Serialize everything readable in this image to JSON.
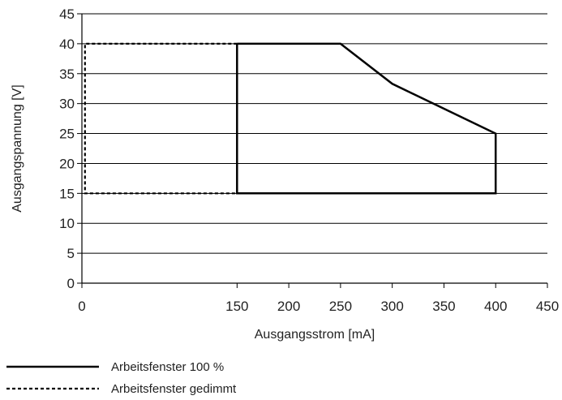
{
  "chart_data": {
    "type": "line",
    "xlabel": "Ausgangsstrom [mA]",
    "ylabel": "Ausgangspannung [V]",
    "xlim": [
      0,
      450
    ],
    "ylim": [
      0,
      45
    ],
    "xticks": [
      "0",
      "150",
      "200",
      "250",
      "300",
      "350",
      "400",
      "450"
    ],
    "yticks": [
      "0",
      "5",
      "10",
      "15",
      "20",
      "25",
      "30",
      "35",
      "40",
      "45"
    ],
    "grid": "horizontal",
    "legend_position": "bottom-left",
    "series": [
      {
        "name": "Arbeitsfenster 100 %",
        "style": "solid",
        "color": "#000000",
        "x": [
          150,
          250,
          300,
          400,
          400,
          150,
          150
        ],
        "y": [
          40,
          40,
          33.3,
          25,
          15,
          15,
          40
        ]
      },
      {
        "name": "Arbeitsfenster gedimmt",
        "style": "dashed",
        "color": "#000000",
        "x": [
          150,
          3,
          3,
          150
        ],
        "y": [
          40,
          40,
          15,
          15
        ]
      }
    ]
  }
}
